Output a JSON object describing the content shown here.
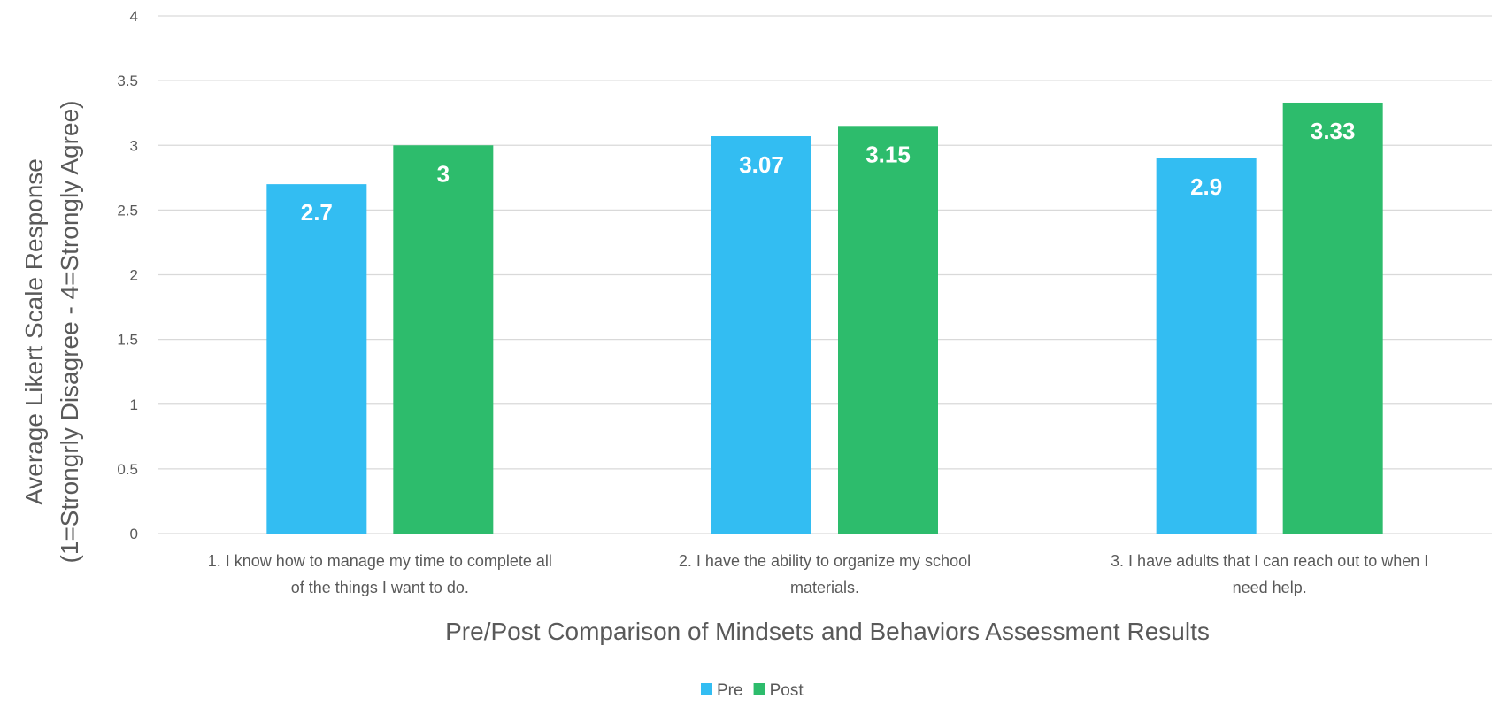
{
  "chart_data": {
    "type": "bar",
    "categories": [
      [
        "1. I know how to manage my time to complete all",
        "of the things I want to do."
      ],
      [
        "2. I have the ability to organize my school",
        "materials."
      ],
      [
        "3. I have adults that I can reach out to when I",
        "need help."
      ]
    ],
    "series": [
      {
        "name": "Pre",
        "values": [
          2.7,
          3.07,
          2.9
        ],
        "color": "#33BDF2"
      },
      {
        "name": "Post",
        "values": [
          3,
          3.15,
          3.33
        ],
        "color": "#2DBC6C"
      }
    ],
    "data_labels": [
      [
        "2.7",
        "3.07",
        "2.9"
      ],
      [
        "3",
        "3.15",
        "3.33"
      ]
    ],
    "xlabel": "Pre/Post Comparison of Mindsets and Behaviors Assessment Results",
    "ylabel": [
      "Average Likert Scale Response",
      "(1=Strongrly Disagree - 4=Strongly Agree)"
    ],
    "ylim": [
      0,
      4
    ],
    "yticks": [
      "0",
      "0.5",
      "1",
      "1.5",
      "2",
      "2.5",
      "3",
      "3.5",
      "4"
    ],
    "grid": true,
    "legend_position": "bottom",
    "gridline_color": "#D9D9D9",
    "text_color": "#595959"
  }
}
